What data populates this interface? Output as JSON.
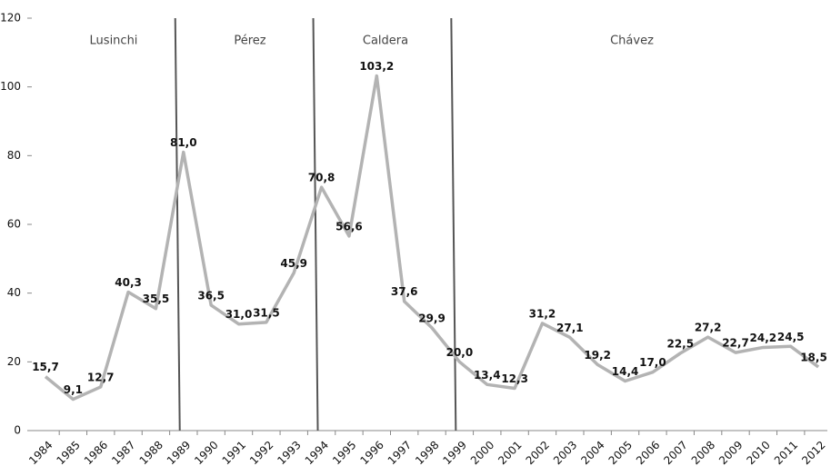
{
  "chart_data": {
    "type": "line",
    "categories": [
      "1984",
      "1985",
      "1986",
      "1987",
      "1988",
      "1989",
      "1990",
      "1991",
      "1992",
      "1993",
      "1994",
      "1995",
      "1996",
      "1997",
      "1998",
      "1999",
      "2000",
      "2001",
      "2002",
      "2003",
      "2004",
      "2005",
      "2006",
      "2007",
      "2008",
      "2009",
      "2010",
      "2011",
      "2012"
    ],
    "series": [
      {
        "name": "",
        "color": "#b3b3b3",
        "values": [
          15.7,
          9.1,
          12.7,
          40.3,
          35.5,
          81.0,
          36.5,
          31.0,
          31.5,
          45.9,
          70.8,
          56.6,
          103.2,
          37.6,
          29.9,
          20.0,
          13.4,
          12.3,
          31.2,
          27.1,
          19.2,
          14.4,
          17.0,
          22.5,
          27.2,
          22.7,
          24.2,
          24.5,
          18.5
        ],
        "value_labels": [
          "15,7",
          "9,1",
          "12,7",
          "40,3",
          "35,5",
          "81,0",
          "36,5",
          "31,0",
          "31,5",
          "45,9",
          "70,8",
          "56,6",
          "103,2",
          "37,6",
          "29,9",
          "20,0",
          "13,4",
          "12,3",
          "31,2",
          "27,1",
          "19,2",
          "14,4",
          "17,0",
          "22,5",
          "27,2",
          "22,7",
          "24,2",
          "24,5",
          "18,5"
        ]
      }
    ],
    "ylim": [
      0,
      120
    ],
    "yticks": [
      0,
      20,
      40,
      60,
      80,
      100,
      120
    ],
    "annotations": [
      "Lusinchi",
      "Pérez",
      "Caldera",
      "Chávez"
    ]
  }
}
